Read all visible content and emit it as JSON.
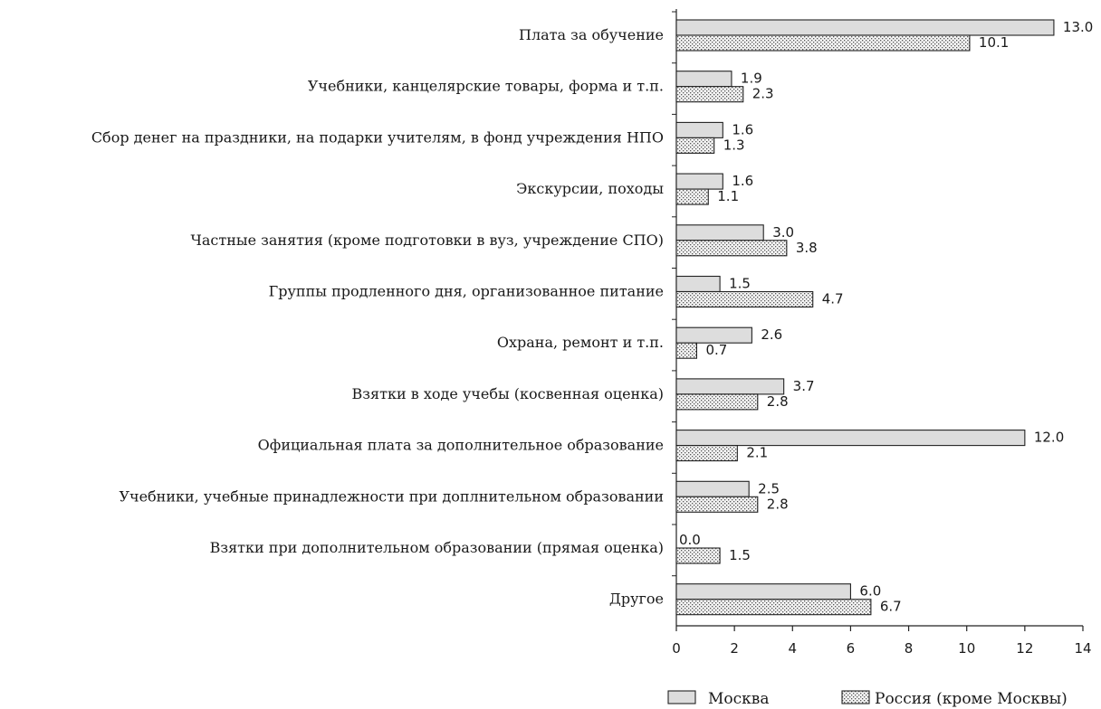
{
  "chart_data": {
    "type": "bar",
    "orientation": "horizontal",
    "categories": [
      "Плата за обучение",
      "Учебники, канцелярские товары, форма и т.п.",
      "Сбор денег на праздники, на подарки учителям, в фонд учреждения НПО",
      "Экскурсии, походы",
      "Частные занятия (кроме подготовки в вуз, учреждение СПО)",
      "Группы продленного дня, организованное питание",
      "Охрана, ремонт и т.п.",
      "Взятки в ходе учебы (косвенная оценка)",
      "Официальная плата за дополнительное образование",
      "Учебники, учебные принадлежности при доплнительном образовании",
      "Взятки при дополнительном образовании (прямая оценка)",
      "Другое"
    ],
    "series": [
      {
        "name": "Москва",
        "values": [
          13.0,
          1.9,
          1.6,
          1.6,
          3.0,
          1.5,
          2.6,
          3.7,
          12.0,
          2.5,
          0.0,
          6.0
        ],
        "labels": [
          "13.0",
          "1.9",
          "1.6",
          "1.6",
          "3.0",
          "1.5",
          "2.6",
          "3.7",
          "12.0",
          "2.5",
          "0.0",
          "6.0"
        ],
        "fill": "#dddddd",
        "pattern": "solid"
      },
      {
        "name": "Россия (кроме Москвы)",
        "values": [
          10.1,
          2.3,
          1.3,
          1.1,
          3.8,
          4.7,
          0.7,
          2.8,
          2.1,
          2.8,
          1.5,
          6.7
        ],
        "labels": [
          "10.1",
          "2.3",
          "1.3",
          "1.1",
          "3.8",
          "4.7",
          "0.7",
          "2.8",
          "2.1",
          "2.8",
          "1.5",
          "6.7"
        ],
        "fill": "#f4f4f4",
        "pattern": "dotted"
      }
    ],
    "x_ticks": [
      "0",
      "2",
      "4",
      "6",
      "8",
      "10",
      "12",
      "14"
    ],
    "xlim": [
      0,
      14
    ],
    "xlabel": "",
    "ylabel": "",
    "title": "",
    "grid": false,
    "legend_position": "bottom-right"
  }
}
